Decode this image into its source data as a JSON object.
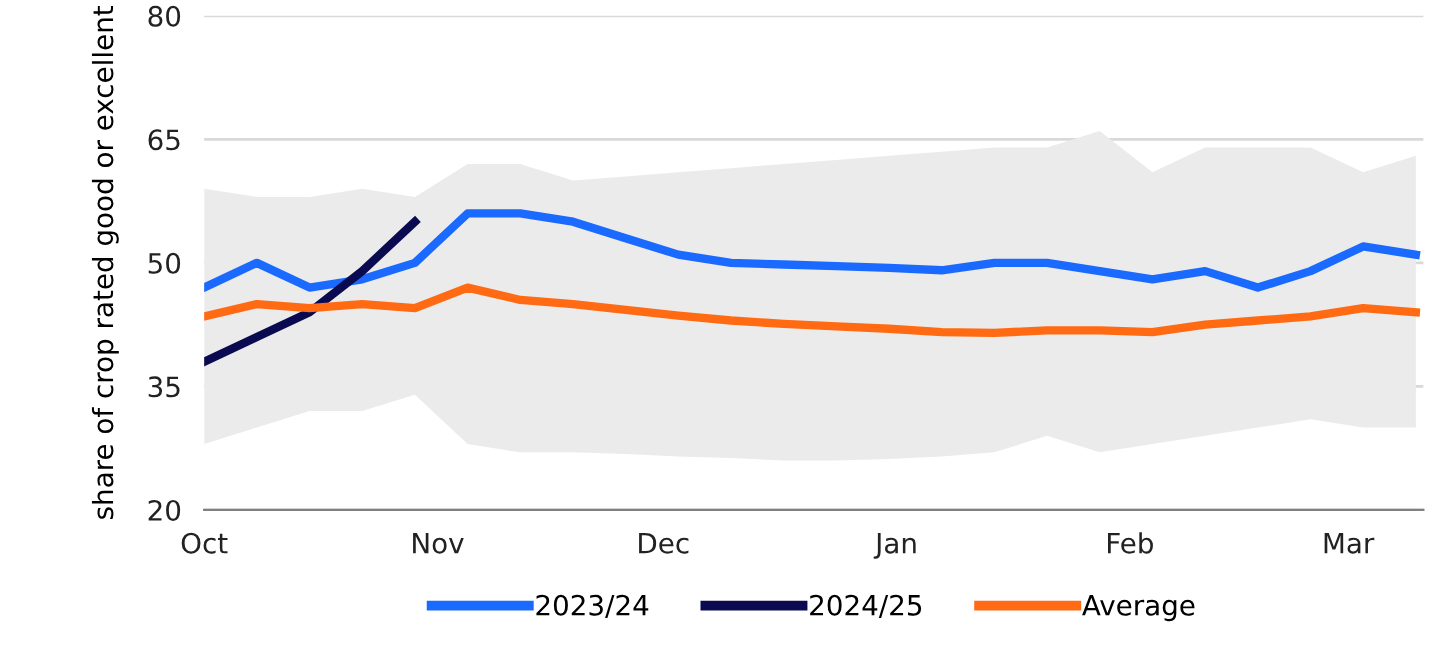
{
  "chart_data": {
    "type": "line",
    "ylabel": "share of crop rated good or excellent",
    "x": [
      "2023-10-01",
      "2023-10-08",
      "2023-10-15",
      "2023-10-22",
      "2023-10-29",
      "2023-11-05",
      "2023-11-12",
      "2023-11-19",
      "2023-11-26",
      "2023-12-03",
      "2023-12-10",
      "2023-12-17",
      "2023-12-24",
      "2023-12-31",
      "2024-01-07",
      "2024-01-14",
      "2024-01-21",
      "2024-01-28",
      "2024-02-04",
      "2024-02-11",
      "2024-02-18",
      "2024-02-25",
      "2024-03-03",
      "2024-03-10"
    ],
    "xlim": [
      "2023-10-01",
      "2024-03-11"
    ],
    "xticks": [
      {
        "value": "2023-10-01",
        "label": "Oct"
      },
      {
        "value": "2023-11-01",
        "label": "Nov"
      },
      {
        "value": "2023-12-01",
        "label": "Dec"
      },
      {
        "value": "2024-01-01",
        "label": "Jan"
      },
      {
        "value": "2024-02-01",
        "label": "Feb"
      },
      {
        "value": "2024-03-01",
        "label": "Mar"
      }
    ],
    "ylim": [
      20,
      80
    ],
    "yticks": [
      20,
      35,
      50,
      65,
      80
    ],
    "grid": "y",
    "legend": "bottom",
    "line_style": "solid",
    "marker": "none",
    "series": [
      {
        "name": "2023/24",
        "color": "#1a6aff",
        "values": [
          47,
          50,
          47,
          48,
          50,
          56,
          56,
          55,
          53,
          51,
          50,
          49.8,
          49.6,
          49.4,
          49.1,
          50,
          50,
          49,
          48,
          49,
          47,
          49,
          52,
          51
        ]
      },
      {
        "name": "2024/25",
        "color": "#0a0a50",
        "x": [
          "2023-10-01",
          "2023-10-08",
          "2023-10-15",
          "2023-10-22",
          "2023-10-29"
        ],
        "values": [
          38,
          41,
          44,
          49,
          55
        ]
      },
      {
        "name": "Average",
        "color": "#ff6a13",
        "values": [
          43.5,
          45,
          44.5,
          45,
          44.5,
          47,
          45.5,
          45,
          44.3,
          43.6,
          43,
          42.6,
          42.3,
          42,
          41.6,
          41.5,
          41.8,
          41.8,
          41.6,
          42.5,
          43,
          43.5,
          44.5,
          44
        ],
        "lower": [
          28,
          30,
          32,
          32,
          34,
          28,
          27,
          27,
          26.8,
          26.5,
          26.3,
          26,
          26,
          26.2,
          26.5,
          27,
          29,
          27,
          28,
          29,
          30,
          31,
          30,
          30
        ],
        "upper": [
          59,
          58,
          58,
          59,
          58,
          62,
          62,
          60,
          60.5,
          61,
          61.5,
          62,
          62.5,
          63,
          63.5,
          64,
          64,
          66,
          61,
          64,
          64,
          64,
          61,
          63
        ]
      }
    ]
  }
}
